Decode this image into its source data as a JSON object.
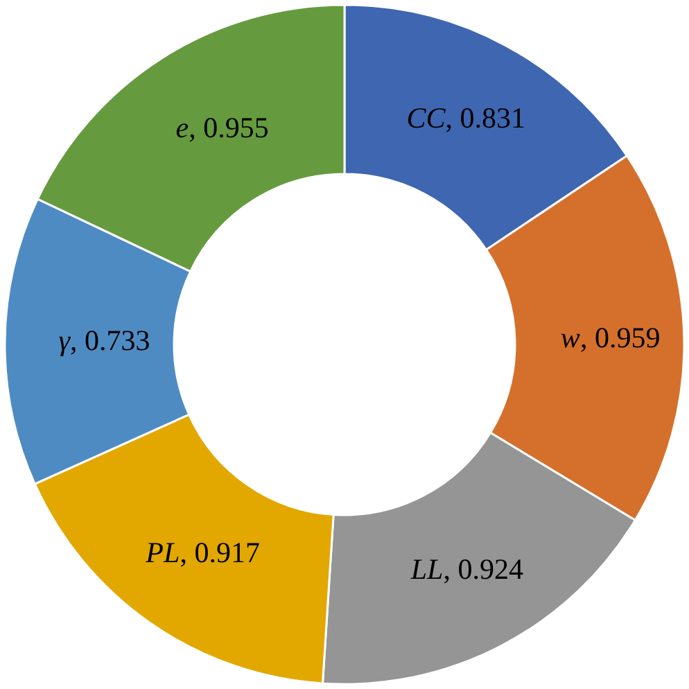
{
  "chart_data": {
    "type": "donut",
    "categories": [
      "CC",
      "w",
      "LL",
      "PL",
      "γ",
      "e"
    ],
    "values": [
      0.831,
      0.959,
      0.924,
      0.917,
      0.733,
      0.955
    ],
    "colors": [
      "#3f66b0",
      "#d5702c",
      "#959595",
      "#e2a800",
      "#4f8bc3",
      "#659b3e"
    ],
    "value_labels": [
      ", 0.831",
      ", 0.959",
      ", 0.924",
      ", 0.917",
      ", 0.733",
      ", 0.955"
    ],
    "legend": false
  }
}
